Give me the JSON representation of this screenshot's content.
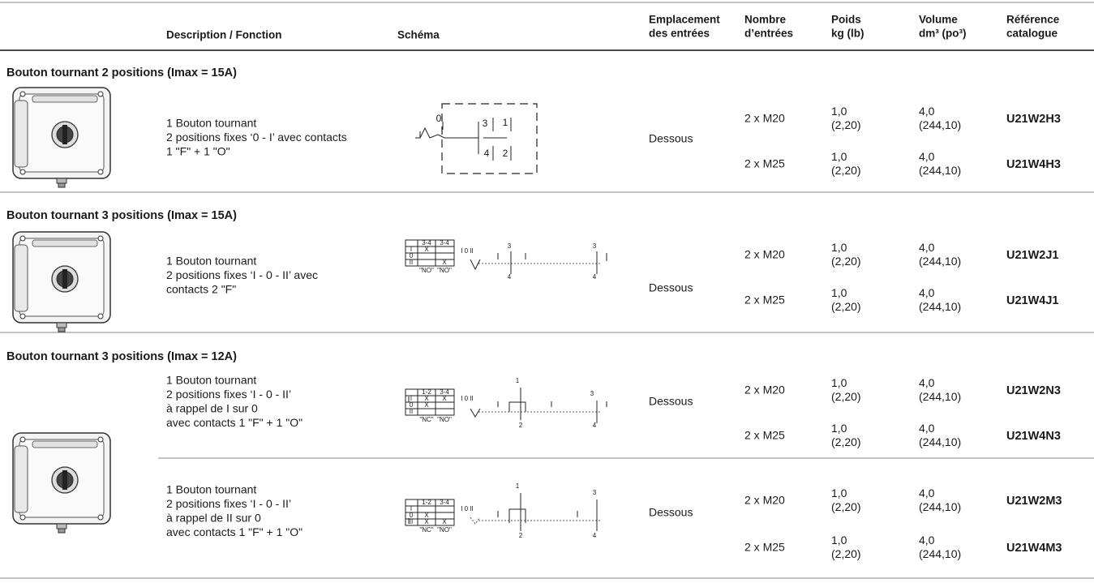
{
  "header": {
    "columns": [
      [
        "Description / Fonction"
      ],
      [
        "Schéma"
      ],
      [
        "Emplacement",
        "des entrées"
      ],
      [
        "Nombre",
        "d’entrées"
      ],
      [
        "Poids",
        "kg (lb)"
      ],
      [
        "Volume",
        "dm³ (po³)"
      ],
      [
        "Référence",
        "catalogue"
      ]
    ]
  },
  "sections": [
    {
      "title": "Bouton tournant 2 positions (Imax = 15A)",
      "groups": [
        {
          "description": [
            "1 Bouton tournant",
            "2 positions fixes ‘0 - I’ avec contacts",
            "1 \"F\" + 1 \"O\""
          ],
          "schematic": [
            "0",
            "3",
            "1",
            "4",
            "2"
          ],
          "location": "Dessous",
          "rows": [
            {
              "entries": "2 x M20",
              "weight": [
                "1,0",
                "(2,20)"
              ],
              "volume": [
                "4,0",
                "(244,10)"
              ],
              "reference": "U21W2H3"
            },
            {
              "entries": "2 x M25",
              "weight": [
                "1,0",
                "(2,20)"
              ],
              "volume": [
                "4,0",
                "(244,10)"
              ],
              "reference": "U21W4H3"
            }
          ]
        }
      ]
    },
    {
      "title": "Bouton tournant 3 positions (Imax = 15A)",
      "groups": [
        {
          "description": [
            "1 Bouton tournant",
            "2 positions fixes ‘I - 0 - II’ avec",
            "contacts 2 \"F\""
          ],
          "schematic": [
            "3-4",
            "3-4",
            "I",
            "0",
            "II",
            "X",
            "X",
            "\"NO\"",
            "\"NO\"",
            "I 0 II",
            "3",
            "4",
            "3",
            "4"
          ],
          "location": "Dessous",
          "rows": [
            {
              "entries": "2 x M20",
              "weight": [
                "1,0",
                "(2,20)"
              ],
              "volume": [
                "4,0",
                "(244,10)"
              ],
              "reference": "U21W2J1"
            },
            {
              "entries": "2 x M25",
              "weight": [
                "1,0",
                "(2,20)"
              ],
              "volume": [
                "4,0",
                "(244,10)"
              ],
              "reference": "U21W4J1"
            }
          ]
        }
      ]
    },
    {
      "title": "Bouton tournant 3 positions (Imax = 12A)",
      "groups": [
        {
          "description": [
            "1 Bouton tournant",
            "2 positions fixes ‘I - 0 - II’",
            "à rappel de I sur 0",
            "avec contacts 1 \"F\" + 1 \"O\""
          ],
          "schematic": [
            "1-2",
            "3-4",
            "I",
            "0",
            "II",
            "X",
            "X",
            "X",
            "\"NC\"",
            "\"NO\"",
            "I 0 II",
            "1",
            "2",
            "3",
            "4"
          ],
          "location": "Dessous",
          "rows": [
            {
              "entries": "2 x M20",
              "weight": [
                "1,0",
                "(2,20)"
              ],
              "volume": [
                "4,0",
                "(244,10)"
              ],
              "reference": "U21W2N3"
            },
            {
              "entries": "2 x M25",
              "weight": [
                "1,0",
                "(2,20)"
              ],
              "volume": [
                "4,0",
                "(244,10)"
              ],
              "reference": "U21W4N3"
            }
          ]
        },
        {
          "description": [
            "1 Bouton tournant",
            "2 positions fixes ‘I - 0 - II’",
            "à rappel de II sur 0",
            "avec contacts 1 \"F\" + 1 \"O\""
          ],
          "schematic": [
            "1-2",
            "3-4",
            "I",
            "0",
            "II",
            "X",
            "X",
            "X",
            "\"NC\"",
            "\"NO\"",
            "I 0 II",
            "1",
            "2",
            "3",
            "4"
          ],
          "location": "Dessous",
          "rows": [
            {
              "entries": "2 x M20",
              "weight": [
                "1,0",
                "(2,20)"
              ],
              "volume": [
                "4,0",
                "(244,10)"
              ],
              "reference": "U21W2M3"
            },
            {
              "entries": "2 x M25",
              "weight": [
                "1,0",
                "(2,20)"
              ],
              "volume": [
                "4,0",
                "(244,10)"
              ],
              "reference": "U21W4M3"
            }
          ]
        }
      ]
    }
  ]
}
